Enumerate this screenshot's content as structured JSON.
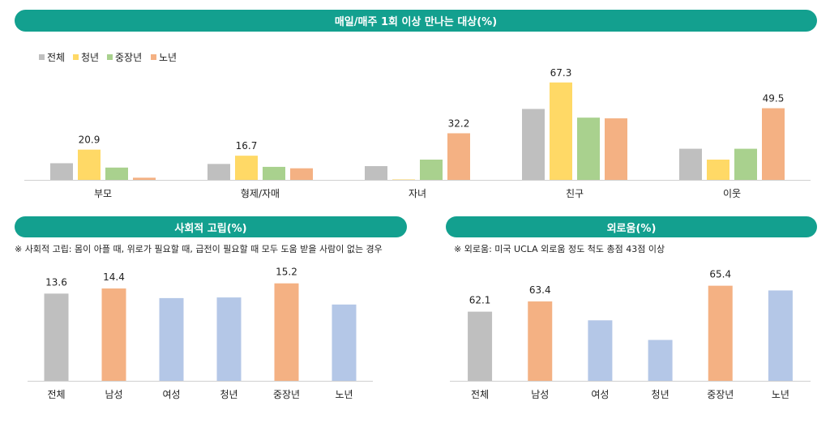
{
  "chart_data": [
    {
      "type": "bar",
      "title": "매일/매주 1회 이상 만나는 대상(%)",
      "categories": [
        "부모",
        "형제/자매",
        "자녀",
        "친구",
        "이웃"
      ],
      "legend": {
        "placement": "top-left"
      },
      "series": [
        {
          "name": "전체",
          "color": "#bfbfbf",
          "values": [
            11.5,
            11.0,
            9.5,
            49.0,
            21.5
          ],
          "labels": [
            "",
            "",
            "",
            "",
            ""
          ]
        },
        {
          "name": "청년",
          "color": "#ffd966",
          "values": [
            20.9,
            16.7,
            0.3,
            67.3,
            14.0
          ],
          "labels": [
            "20.9",
            "16.7",
            "",
            "67.3",
            ""
          ]
        },
        {
          "name": "중장년",
          "color": "#a9d18e",
          "values": [
            8.5,
            9.0,
            14.0,
            43.0,
            21.5
          ],
          "labels": [
            "",
            "",
            "",
            "",
            ""
          ]
        },
        {
          "name": "노년",
          "color": "#f4b183",
          "values": [
            1.5,
            8.0,
            32.2,
            42.5,
            49.5
          ],
          "labels": [
            "",
            "",
            "32.2",
            "",
            "49.5"
          ]
        }
      ],
      "ylim": [
        0,
        75
      ]
    },
    {
      "type": "bar",
      "title": "사회적 고립(%)",
      "note": "※ 사회적 고립: 몸이 아플 때, 위로가 필요할 때, 급전이 필요할 때 모두 도움 받을 사람이 없는 경우",
      "categories": [
        "전체",
        "남성",
        "여성",
        "청년",
        "중장년",
        "노년"
      ],
      "values": [
        13.6,
        14.4,
        12.9,
        13.0,
        15.2,
        11.9
      ],
      "labels": [
        "13.6",
        "14.4",
        "",
        "",
        "15.2",
        ""
      ],
      "colors": [
        "#bfbfbf",
        "#f4b183",
        "#b4c7e7",
        "#b4c7e7",
        "#f4b183",
        "#b4c7e7"
      ],
      "ylim": [
        0,
        16.3
      ]
    },
    {
      "type": "bar",
      "title": "외로움(%)",
      "note": "※ 외로움: 미국 UCLA 외로움 정도 척도 총점 43점 이상",
      "categories": [
        "전체",
        "남성",
        "여성",
        "청년",
        "중장년",
        "노년"
      ],
      "values": [
        62.1,
        63.4,
        61.0,
        58.5,
        65.4,
        64.8
      ],
      "labels": [
        "62.1",
        "63.4",
        "",
        "",
        "65.4",
        ""
      ],
      "colors": [
        "#bfbfbf",
        "#f4b183",
        "#b4c7e7",
        "#b4c7e7",
        "#f4b183",
        "#b4c7e7"
      ],
      "ylim": [
        53.3,
        66.6
      ]
    }
  ]
}
